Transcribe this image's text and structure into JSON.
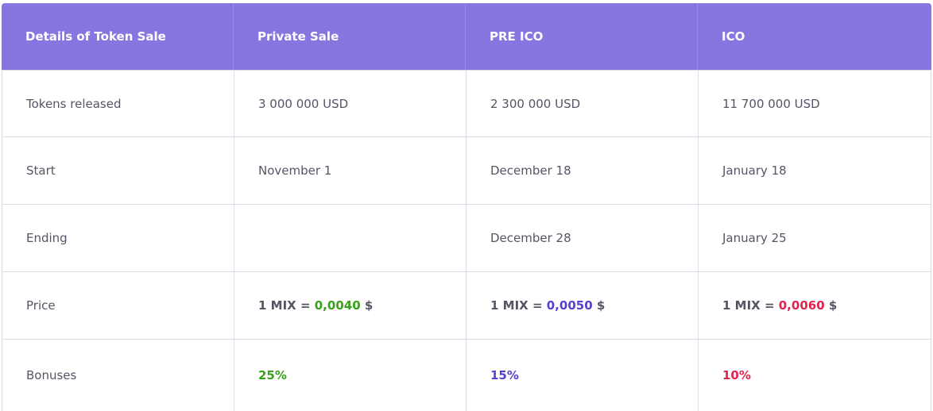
{
  "header": {
    "col0": "Details of Token Sale",
    "col1": "Private Sale",
    "col2": "PRE ICO",
    "col3": "ICO"
  },
  "rows": {
    "tokens": {
      "label": "Tokens released",
      "private": "3 000 000 USD",
      "preico": "2 300 000 USD",
      "ico": "11 700 000 USD"
    },
    "start": {
      "label": "Start",
      "private": "November 1",
      "preico": "December 18",
      "ico": "January 18"
    },
    "ending": {
      "label": "Ending",
      "private": "",
      "preico": "December 28",
      "ico": "January 25"
    },
    "price": {
      "label": "Price",
      "prefix": "1 MIX = ",
      "suffix": " $",
      "private": "0,0040",
      "preico": "0,0050",
      "ico": "0,0060"
    },
    "bonuses": {
      "label": "Bonuses",
      "private": "25%",
      "preico": "15%",
      "ico": "10%"
    }
  },
  "colors": {
    "header_bg": "#8676df",
    "private_accent": "#3aa11a",
    "preico_accent": "#5a3fcf",
    "ico_accent": "#e0244e"
  }
}
